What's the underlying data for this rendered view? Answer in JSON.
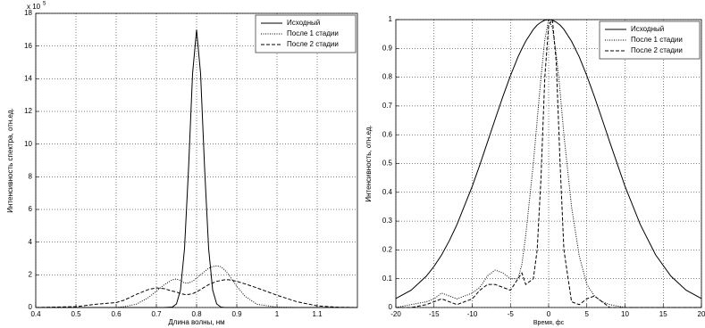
{
  "chart_data": [
    {
      "type": "line",
      "x_label": "Длина волны, нм",
      "y_label": "Интенсивность спектра, отн.ед.",
      "y_multiplier": "x 10",
      "y_multiplier_exponent": "5",
      "xlim": [
        0.4,
        1.2
      ],
      "ylim": [
        0,
        18
      ],
      "xticks": [
        0.4,
        0.5,
        0.6,
        0.7,
        0.8,
        0.9,
        1,
        1.1
      ],
      "yticks": [
        0,
        2,
        4,
        6,
        8,
        10,
        12,
        14,
        16,
        18
      ],
      "grid": true,
      "legend": "upper right",
      "x": [
        0.4,
        0.5,
        0.55,
        0.6,
        0.62,
        0.65,
        0.68,
        0.7,
        0.72,
        0.74,
        0.75,
        0.76,
        0.77,
        0.78,
        0.79,
        0.8,
        0.81,
        0.82,
        0.83,
        0.84,
        0.85,
        0.86,
        0.87,
        0.88,
        0.9,
        0.92,
        0.95,
        1.0,
        1.05,
        1.1,
        1.15,
        1.2
      ],
      "series": [
        {
          "name": "Исходный",
          "color": "#000000",
          "dash": "solid",
          "values": [
            0,
            0,
            0,
            0,
            0,
            0,
            0,
            0,
            0,
            0.03,
            0.22,
            1.07,
            3.6,
            8.5,
            14.3,
            17,
            14.3,
            8.5,
            3.6,
            1.07,
            0.22,
            0.03,
            0,
            0,
            0,
            0,
            0,
            0,
            0,
            0,
            0,
            0
          ]
        },
        {
          "name": "После 1 стадии",
          "color": "#000000",
          "dash": "dotted",
          "values": [
            0,
            0,
            0,
            0,
            0.05,
            0.2,
            0.6,
            1.0,
            1.4,
            1.7,
            1.75,
            1.65,
            1.5,
            1.5,
            1.6,
            1.8,
            2.0,
            2.2,
            2.4,
            2.5,
            2.55,
            2.5,
            2.3,
            2.0,
            1.3,
            0.7,
            0.2,
            0.02,
            0,
            0,
            0,
            0
          ]
        },
        {
          "name": "После 2 стадии",
          "color": "#000000",
          "dash": "dashed",
          "values": [
            0,
            0.05,
            0.2,
            0.3,
            0.45,
            0.8,
            1.1,
            1.2,
            1.15,
            1.0,
            0.95,
            0.85,
            0.8,
            0.8,
            0.85,
            0.95,
            1.1,
            1.25,
            1.4,
            1.5,
            1.6,
            1.65,
            1.7,
            1.7,
            1.6,
            1.45,
            1.2,
            0.75,
            0.35,
            0.1,
            0.02,
            0
          ]
        }
      ]
    },
    {
      "type": "line",
      "x_label": "Время, фс",
      "y_label": "Интенсивность, отн.ед.",
      "xlim": [
        -20,
        20
      ],
      "ylim": [
        0,
        1
      ],
      "xticks": [
        -20,
        -15,
        -10,
        -5,
        0,
        5,
        10,
        15,
        20
      ],
      "yticks": [
        0,
        0.1,
        0.2,
        0.3,
        0.4,
        0.5,
        0.6,
        0.7,
        0.8,
        0.9,
        1
      ],
      "grid": true,
      "legend": "upper right",
      "x": [
        -20,
        -18,
        -16,
        -15,
        -14,
        -13,
        -12,
        -10,
        -9,
        -8,
        -7,
        -6,
        -5,
        -4,
        -3.5,
        -3,
        -2,
        -1.5,
        -1,
        -0.5,
        0,
        0.5,
        1,
        1.5,
        2,
        3,
        4,
        5,
        6,
        7,
        8,
        10,
        12,
        14,
        16,
        18,
        20
      ],
      "series": [
        {
          "name": "Исходный",
          "color": "#000000",
          "dash": "solid",
          "values": [
            0.031,
            0.06,
            0.109,
            0.143,
            0.183,
            0.232,
            0.288,
            0.421,
            0.496,
            0.575,
            0.654,
            0.732,
            0.805,
            0.871,
            0.899,
            0.925,
            0.966,
            0.981,
            0.991,
            0.998,
            1,
            0.998,
            0.991,
            0.981,
            0.966,
            0.925,
            0.871,
            0.805,
            0.732,
            0.654,
            0.575,
            0.421,
            0.288,
            0.183,
            0.109,
            0.06,
            0.031
          ]
        },
        {
          "name": "После 1 стадии",
          "color": "#000000",
          "dash": "dotted",
          "values": [
            0,
            0.01,
            0.02,
            0.03,
            0.05,
            0.04,
            0.03,
            0.05,
            0.07,
            0.11,
            0.13,
            0.12,
            0.1,
            0.1,
            0.15,
            0.25,
            0.5,
            0.65,
            0.8,
            0.93,
            1,
            0.97,
            0.88,
            0.75,
            0.6,
            0.35,
            0.18,
            0.08,
            0.04,
            0.02,
            0.01,
            0,
            0,
            0,
            0,
            0,
            0
          ]
        },
        {
          "name": "После 2 стадии",
          "color": "#000000",
          "dash": "dashed",
          "values": [
            0,
            0,
            0.01,
            0.02,
            0.03,
            0.02,
            0.01,
            0.03,
            0.06,
            0.08,
            0.08,
            0.07,
            0.06,
            0.1,
            0.12,
            0.08,
            0.1,
            0.2,
            0.45,
            0.8,
            0.98,
            1,
            0.85,
            0.5,
            0.2,
            0.02,
            0.01,
            0.03,
            0.04,
            0.02,
            0,
            0,
            0,
            0,
            0,
            0,
            0
          ]
        }
      ]
    }
  ]
}
